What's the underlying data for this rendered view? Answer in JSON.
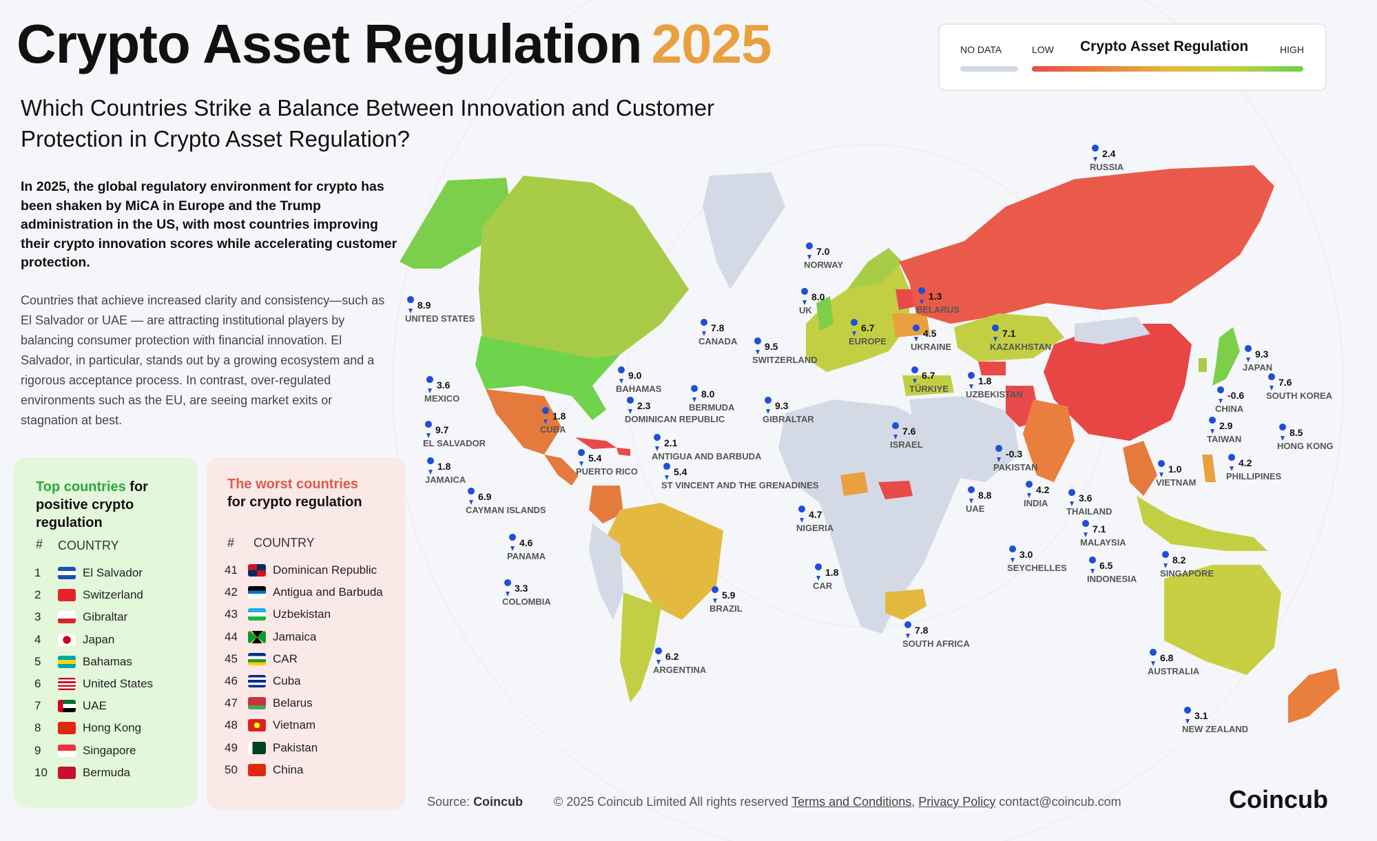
{
  "title": {
    "main": "Crypto Asset Regulation",
    "year": "2025"
  },
  "subtitle": "Which Countries Strike a Balance Between Innovation and Customer Protection in Crypto Asset Regulation?",
  "intro_bold": "In 2025, the global regulatory environment for crypto has been shaken by MiCA in Europe and the Trump administration in the US, with most countries improving their crypto innovation scores while accelerating customer protection.",
  "intro_body": "Countries that achieve increased clarity and consistency—such as El Salvador or UAE — are attracting institutional players by balancing consumer protection with financial innovation. El Salvador, in particular, stands out by a growing ecosystem and a rigorous acceptance process. In contrast, over-regulated environments such as the EU, are seeing market exits or stagnation at best.",
  "legend": {
    "no_data": "NO DATA",
    "low": "LOW",
    "title": "Crypto Asset Regulation",
    "high": "HIGH"
  },
  "colors": {
    "no_data": "#d3dae6",
    "low": "#e84a4a",
    "high": "#6bd14a",
    "year": "#e9a03f",
    "pin": "#1f4fd8"
  },
  "top_panel": {
    "heading_highlight": "Top countries",
    "heading_rest": " for positive crypto regulation",
    "col_num": "#",
    "col_country": "COUNTRY",
    "rows": [
      {
        "rank": "1",
        "country": "El Salvador",
        "flag": "el-salvador-flag"
      },
      {
        "rank": "2",
        "country": "Switzerland",
        "flag": "switzerland-flag"
      },
      {
        "rank": "3",
        "country": "Gibraltar",
        "flag": "gibraltar-flag"
      },
      {
        "rank": "4",
        "country": "Japan",
        "flag": "japan-flag"
      },
      {
        "rank": "5",
        "country": "Bahamas",
        "flag": "bahamas-flag"
      },
      {
        "rank": "6",
        "country": "United States",
        "flag": "usa-flag"
      },
      {
        "rank": "7",
        "country": "UAE",
        "flag": "uae-flag"
      },
      {
        "rank": "8",
        "country": "Hong Kong",
        "flag": "hong-kong-flag"
      },
      {
        "rank": "9",
        "country": "Singapore",
        "flag": "singapore-flag"
      },
      {
        "rank": "10",
        "country": "Bermuda",
        "flag": "bermuda-flag"
      }
    ]
  },
  "worst_panel": {
    "heading_highlight": "The worst countries",
    "heading_rest": "for crypto regulation",
    "col_num": "#",
    "col_country": "COUNTRY",
    "rows": [
      {
        "rank": "41",
        "country": "Dominican Republic",
        "flag": "dominican-republic-flag"
      },
      {
        "rank": "42",
        "country": "Antigua and Barbuda",
        "flag": "antigua-flag"
      },
      {
        "rank": "43",
        "country": "Uzbekistan",
        "flag": "uzbekistan-flag"
      },
      {
        "rank": "44",
        "country": "Jamaica",
        "flag": "jamaica-flag"
      },
      {
        "rank": "45",
        "country": "CAR",
        "flag": "car-flag"
      },
      {
        "rank": "46",
        "country": "Cuba",
        "flag": "cuba-flag"
      },
      {
        "rank": "47",
        "country": "Belarus",
        "flag": "belarus-flag"
      },
      {
        "rank": "48",
        "country": "Vietnam",
        "flag": "vietnam-flag"
      },
      {
        "rank": "49",
        "country": "Pakistan",
        "flag": "pakistan-flag"
      },
      {
        "rank": "50",
        "country": "China",
        "flag": "china-flag"
      }
    ]
  },
  "map_labels": [
    {
      "name": "RUSSIA",
      "score": "2.4"
    },
    {
      "name": "NORWAY",
      "score": "7.0"
    },
    {
      "name": "UK",
      "score": "8.0"
    },
    {
      "name": "BELARUS",
      "score": "1.3"
    },
    {
      "name": "EUROPE",
      "score": "6.7"
    },
    {
      "name": "UKRAINE",
      "score": "4.5"
    },
    {
      "name": "KAZAKHSTAN",
      "score": "7.1"
    },
    {
      "name": "UNITED STATES",
      "score": "8.9"
    },
    {
      "name": "CANADA",
      "score": "7.8"
    },
    {
      "name": "SWITZERLAND",
      "score": "9.5"
    },
    {
      "name": "JAPAN",
      "score": "9.3"
    },
    {
      "name": "TÜRKIYE",
      "score": "6.7"
    },
    {
      "name": "UZBEKISTAN",
      "score": "1.8"
    },
    {
      "name": "SOUTH KOREA",
      "score": "7.6"
    },
    {
      "name": "MEXICO",
      "score": "3.6"
    },
    {
      "name": "BAHAMAS",
      "score": "9.0"
    },
    {
      "name": "BERMUDA",
      "score": "8.0"
    },
    {
      "name": "CHINA",
      "score": "-0.6"
    },
    {
      "name": "DOMINICAN REPUBLIC",
      "score": "2.3"
    },
    {
      "name": "GIBRALTAR",
      "score": "9.3"
    },
    {
      "name": "CUBA",
      "score": "1.8"
    },
    {
      "name": "TAIWAN",
      "score": "2.9"
    },
    {
      "name": "EL SALVADOR",
      "score": "9.7"
    },
    {
      "name": "ISRAEL",
      "score": "7.6"
    },
    {
      "name": "HONG KONG",
      "score": "8.5"
    },
    {
      "name": "ANTIGUA AND BARBUDA",
      "score": "2.1"
    },
    {
      "name": "PUERTO RICO",
      "score": "5.4"
    },
    {
      "name": "PAKISTAN",
      "score": "-0.3"
    },
    {
      "name": "PHILLIPINES",
      "score": "4.2"
    },
    {
      "name": "JAMAICA",
      "score": "1.8"
    },
    {
      "name": "ST VINCENT AND THE GRENADINES",
      "score": "5.4"
    },
    {
      "name": "VIETNAM",
      "score": "1.0"
    },
    {
      "name": "CAYMAN ISLANDS",
      "score": "6.9"
    },
    {
      "name": "INDIA",
      "score": "4.2"
    },
    {
      "name": "UAE",
      "score": "8.8"
    },
    {
      "name": "THAILAND",
      "score": "3.6"
    },
    {
      "name": "NIGERIA",
      "score": "4.7"
    },
    {
      "name": "PANAMA",
      "score": "4.6"
    },
    {
      "name": "MALAYSIA",
      "score": "7.1"
    },
    {
      "name": "SEYCHELLES",
      "score": "3.0"
    },
    {
      "name": "SINGAPORE",
      "score": "8.2"
    },
    {
      "name": "INDONESIA",
      "score": "6.5"
    },
    {
      "name": "COLOMBIA",
      "score": "3.3"
    },
    {
      "name": "CAR",
      "score": "1.8"
    },
    {
      "name": "BRAZIL",
      "score": "5.9"
    },
    {
      "name": "SOUTH AFRICA",
      "score": "7.8"
    },
    {
      "name": "ARGENTINA",
      "score": "6.2"
    },
    {
      "name": "AUSTRALIA",
      "score": "6.8"
    },
    {
      "name": "NEW ZEALAND",
      "score": "3.1"
    }
  ],
  "footer": {
    "source_label": "Source:",
    "source_name": "Coincub",
    "copyright": "© 2025 Coincub Limited  All rights reserved",
    "terms": "Terms and Conditions",
    "sep": ",",
    "privacy": "Privacy Policy",
    "contact": "contact@coincub.com",
    "brand": "Coincub"
  }
}
